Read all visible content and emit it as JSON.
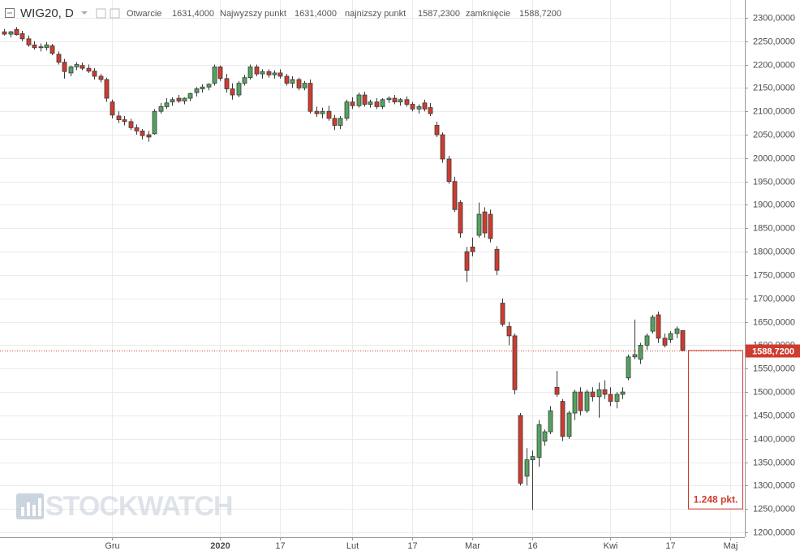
{
  "chart_data": {
    "type": "candlestick",
    "header": {
      "symbol": "WIG20, D",
      "open_label": "Otwarcie",
      "open": "1631,4000",
      "high_label": "Najwyzszy punkt",
      "high": "1631,4000",
      "low_label": "najnizszy punkt",
      "low": "1587,2300",
      "close_label": "zamknięcie",
      "close": "1588,7200"
    },
    "open": [
      2270,
      2265,
      2275,
      2266,
      2255,
      2242,
      2238,
      2236,
      2240,
      2222,
      2205,
      2182,
      2195,
      2198,
      2192,
      2186,
      2175,
      2168,
      2120,
      2090,
      2082,
      2078,
      2065,
      2058,
      2050,
      2052,
      2100,
      2110,
      2120,
      2128,
      2122,
      2128,
      2140,
      2148,
      2152,
      2160,
      2195,
      2170,
      2148,
      2135,
      2160,
      2172,
      2195,
      2180,
      2185,
      2178,
      2182,
      2175,
      2160,
      2168,
      2150,
      2160,
      2100,
      2095,
      2100,
      2085,
      2070,
      2085,
      2120,
      2112,
      2135,
      2115,
      2120,
      2110,
      2125,
      2128,
      2120,
      2125,
      2115,
      2105,
      2118,
      2108,
      2070,
      2050,
      1998,
      1950,
      1905,
      1800,
      1810,
      1835,
      1885,
      1880,
      1805,
      1690,
      1640,
      1620,
      1450,
      1320,
      1355,
      1360,
      1395,
      1415,
      1510,
      1480,
      1405,
      1455,
      1500,
      1460,
      1500,
      1490,
      1505,
      1495,
      1480,
      1495,
      1530,
      1575,
      1570,
      1600,
      1630,
      1665,
      1615,
      1612,
      1625,
      1631.4
    ],
    "high": [
      2276,
      2272,
      2280,
      2272,
      2262,
      2250,
      2245,
      2248,
      2244,
      2228,
      2212,
      2198,
      2205,
      2204,
      2200,
      2192,
      2180,
      2172,
      2125,
      2100,
      2090,
      2084,
      2072,
      2062,
      2058,
      2105,
      2118,
      2128,
      2130,
      2135,
      2130,
      2140,
      2152,
      2158,
      2160,
      2200,
      2198,
      2180,
      2160,
      2165,
      2178,
      2200,
      2200,
      2190,
      2190,
      2188,
      2190,
      2180,
      2175,
      2172,
      2165,
      2168,
      2110,
      2108,
      2112,
      2092,
      2090,
      2125,
      2130,
      2140,
      2142,
      2125,
      2128,
      2128,
      2132,
      2135,
      2128,
      2132,
      2120,
      2115,
      2125,
      2118,
      2078,
      2055,
      2005,
      1960,
      1910,
      1810,
      1830,
      1905,
      1895,
      1890,
      1812,
      1700,
      1650,
      1625,
      1455,
      1380,
      1375,
      1440,
      1420,
      1470,
      1545,
      1485,
      1460,
      1505,
      1510,
      1505,
      1510,
      1520,
      1525,
      1510,
      1500,
      1510,
      1580,
      1655,
      1605,
      1625,
      1665,
      1672,
      1625,
      1630,
      1640,
      1631.4
    ],
    "low": [
      2262,
      2258,
      2262,
      2250,
      2238,
      2232,
      2228,
      2230,
      2220,
      2200,
      2170,
      2175,
      2188,
      2188,
      2182,
      2168,
      2162,
      2120,
      2085,
      2075,
      2070,
      2060,
      2050,
      2040,
      2035,
      2050,
      2095,
      2105,
      2112,
      2118,
      2115,
      2122,
      2132,
      2140,
      2145,
      2155,
      2165,
      2140,
      2125,
      2130,
      2155,
      2168,
      2175,
      2170,
      2172,
      2170,
      2170,
      2155,
      2150,
      2145,
      2145,
      2095,
      2088,
      2085,
      2080,
      2060,
      2062,
      2080,
      2105,
      2108,
      2110,
      2108,
      2105,
      2105,
      2118,
      2115,
      2112,
      2110,
      2100,
      2095,
      2100,
      2090,
      2045,
      1990,
      1945,
      1885,
      1830,
      1735,
      1790,
      1830,
      1830,
      1820,
      1750,
      1640,
      1600,
      1495,
      1300,
      1300,
      1248,
      1340,
      1385,
      1410,
      1490,
      1395,
      1400,
      1440,
      1450,
      1455,
      1480,
      1445,
      1485,
      1470,
      1465,
      1485,
      1525,
      1570,
      1560,
      1590,
      1625,
      1605,
      1595,
      1605,
      1615,
      1587.23
    ],
    "close": [
      2265,
      2270,
      2264,
      2255,
      2242,
      2236,
      2236,
      2242,
      2224,
      2205,
      2185,
      2195,
      2200,
      2192,
      2186,
      2175,
      2168,
      2128,
      2092,
      2082,
      2078,
      2065,
      2058,
      2048,
      2045,
      2100,
      2110,
      2118,
      2125,
      2122,
      2128,
      2138,
      2148,
      2152,
      2158,
      2195,
      2170,
      2148,
      2135,
      2160,
      2172,
      2195,
      2180,
      2185,
      2178,
      2182,
      2175,
      2160,
      2168,
      2150,
      2160,
      2100,
      2095,
      2100,
      2085,
      2070,
      2085,
      2120,
      2112,
      2135,
      2115,
      2120,
      2110,
      2125,
      2128,
      2120,
      2125,
      2115,
      2105,
      2110,
      2105,
      2095,
      2050,
      1998,
      1950,
      1890,
      1840,
      1760,
      1800,
      1880,
      1840,
      1828,
      1760,
      1645,
      1620,
      1505,
      1305,
      1355,
      1362,
      1430,
      1415,
      1460,
      1495,
      1405,
      1455,
      1500,
      1460,
      1500,
      1490,
      1505,
      1495,
      1480,
      1495,
      1500,
      1575,
      1580,
      1600,
      1620,
      1660,
      1615,
      1600,
      1625,
      1635,
      1588.72
    ],
    "up_color": "#53a35f",
    "down_color": "#cf3b2e",
    "wick_color": "#3a3a3a",
    "xlim": [
      -0.7,
      123.4
    ],
    "ylim": [
      1189.6,
      2338
    ],
    "xticks": [
      {
        "value": 18,
        "label": "Gru"
      },
      {
        "value": 36,
        "label": "2020"
      },
      {
        "value": 46,
        "label": "17"
      },
      {
        "value": 58,
        "label": "Lut"
      },
      {
        "value": 68,
        "label": "17"
      },
      {
        "value": 78,
        "label": "Mar"
      },
      {
        "value": 88,
        "label": "16"
      },
      {
        "value": 101,
        "label": "Kwi"
      },
      {
        "value": 111,
        "label": "17"
      },
      {
        "value": 121,
        "label": "Maj"
      }
    ],
    "yticks": [
      {
        "value": 1200,
        "label": "1200,0000"
      },
      {
        "value": 1250,
        "label": "1250,0000"
      },
      {
        "value": 1300,
        "label": "1300,0000"
      },
      {
        "value": 1350,
        "label": "1350,0000"
      },
      {
        "value": 1400,
        "label": "1400,0000"
      },
      {
        "value": 1450,
        "label": "1450,0000"
      },
      {
        "value": 1500,
        "label": "1500,0000"
      },
      {
        "value": 1550,
        "label": "1550,0000"
      },
      {
        "value": 1600,
        "label": "1600,0000"
      },
      {
        "value": 1650,
        "label": "1650,0000"
      },
      {
        "value": 1700,
        "label": "1700,0000"
      },
      {
        "value": 1750,
        "label": "1750,0000"
      },
      {
        "value": 1800,
        "label": "1800,0000"
      },
      {
        "value": 1850,
        "label": "1850,0000"
      },
      {
        "value": 1900,
        "label": "1900,0000"
      },
      {
        "value": 1950,
        "label": "1950,0000"
      },
      {
        "value": 2000,
        "label": "2000,0000"
      },
      {
        "value": 2050,
        "label": "2050,0000"
      },
      {
        "value": 2100,
        "label": "2100,0000"
      },
      {
        "value": 2150,
        "label": "2150,0000"
      },
      {
        "value": 2200,
        "label": "2200,0000"
      },
      {
        "value": 2250,
        "label": "2250,0000"
      },
      {
        "value": 2300,
        "label": "2300,0000"
      }
    ],
    "grid": true,
    "last_price": {
      "value": 1588.72,
      "label": "1588,7200"
    },
    "measure": {
      "label": "1.248 pkt.",
      "ylim": [
        1250,
        1588.72
      ]
    },
    "watermark": "STOCKWATCH"
  }
}
